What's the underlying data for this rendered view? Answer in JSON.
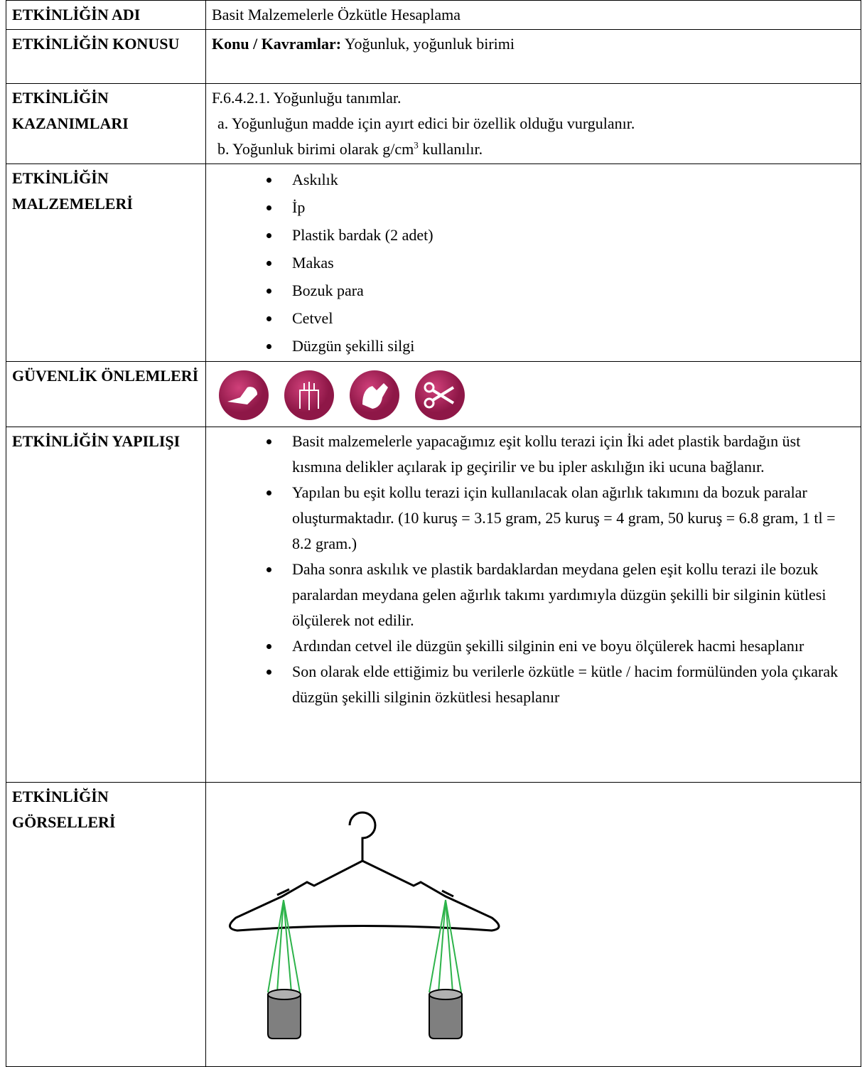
{
  "table": {
    "rows": [
      {
        "label": "ETKİNLİĞİN ADI",
        "text": "Basit Malzemelerle Özkütle Hesaplama"
      },
      {
        "label": "ETKİNLİĞİN KONUSU",
        "bold": "Konu / Kavramlar:",
        "text": "Yoğunluk, yoğunluk birimi"
      },
      {
        "label": "ETKİNLİĞİN KAZANIMLARI",
        "lines": [
          "F.6.4.2.1. Yoğunluğu tanımlar.",
          "a. Yoğunluğun madde için ayırt edici bir özellik olduğu vurgulanır.",
          {
            "pre": "b. Yoğunluk birimi olarak g/cm",
            "sup": "3",
            "post": "kullanılır."
          }
        ]
      },
      {
        "label": "ETKİNLİĞİN MALZEMELERİ",
        "items": [
          "Askılık",
          "İp",
          "Plastik bardak (2 adet)",
          "Makas",
          "Bozuk para",
          "Cetvel",
          "Düzgün şekilli silgi"
        ]
      },
      {
        "label": "GÜVENLİK ÖNLEMLERİ"
      },
      {
        "label": "ETKİNLİĞİN YAPILIŞI",
        "items": [
          "Basit malzemelerle yapacağımız eşit kollu terazi için İki adet plastik bardağın üst kısmına delikler açılarak ip geçirilir ve bu ipler askılığın iki ucuna bağlanır.",
          "Yapılan bu eşit kollu terazi için kullanılacak olan ağırlık takımını da bozuk paralar oluşturmaktadır.  (10 kuruş = 3.15 gram, 25 kuruş = 4 gram, 50 kuruş = 6.8 gram, 1 tl = 8.2 gram.)",
          "Daha sonra askılık ve plastik bardaklardan meydana gelen eşit kollu terazi ile bozuk paralardan meydana gelen ağırlık takımı yardımıyla düzgün şekilli bir silginin kütlesi ölçülerek not edilir.",
          "Ardından cetvel ile düzgün şekilli silginin eni ve boyu ölçülerek hacmi hesaplanır",
          "Son olarak elde ettiğimiz bu verilerle özkütle = kütle / hacim formülünden yola çıkarak düzgün şekilli silginin özkütlesi hesaplanır"
        ]
      },
      {
        "label": "ETKİNLİĞİN GÖRSELLERİ"
      }
    ]
  }
}
